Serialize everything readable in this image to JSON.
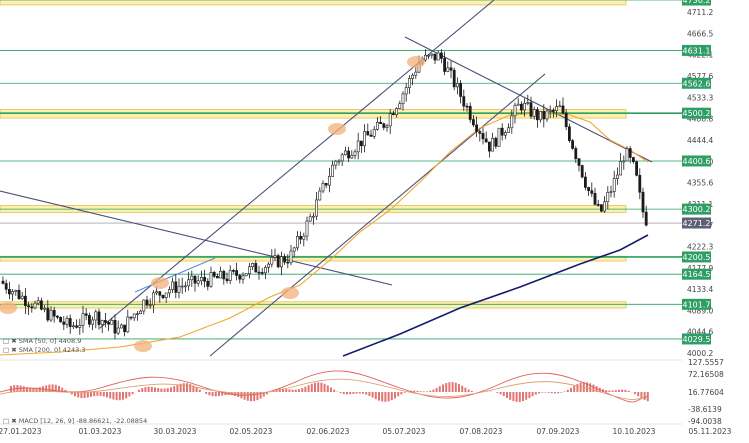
{
  "chart_data": {
    "type": "candlestick",
    "instrument_note": "",
    "x_dates": [
      "27.01.2023",
      "01.03.2023",
      "30.03.2023",
      "02.05.2023",
      "02.06.2023",
      "05.07.2023",
      "07.08.2023",
      "07.09.2023",
      "10.10.2023",
      "05.11.2023"
    ],
    "y_ticks": [
      4711.2,
      4666.5,
      4622.1,
      4577.6,
      4533.3,
      4488.8,
      4444.4,
      4400.0,
      4355.6,
      4311.1,
      4266.7,
      4222.3,
      4177.9,
      4133.4,
      4089.0,
      4044.6,
      4000.2
    ],
    "ylim": [
      4000.2,
      4750
    ],
    "price_tags": [
      {
        "value": "4736.2",
        "y": 4736.2
      },
      {
        "value": "4631.1",
        "y": 4631.1
      },
      {
        "value": "4562.6",
        "y": 4562.6
      },
      {
        "value": "4500.2",
        "y": 4500.2
      },
      {
        "value": "4400.6",
        "y": 4400.6
      },
      {
        "value": "4300.2",
        "y": 4300.2
      },
      {
        "value": "4200.5",
        "y": 4200.5
      },
      {
        "value": "4164.5",
        "y": 4164.5
      },
      {
        "value": "4101.7",
        "y": 4101.7
      },
      {
        "value": "4029.5",
        "y": 4029.5
      }
    ],
    "current_price": "4271.2",
    "zones": [
      [
        4726,
        4746
      ],
      [
        4490,
        4508
      ],
      [
        4293,
        4308
      ],
      [
        4192,
        4202
      ],
      [
        4094,
        4107
      ]
    ],
    "legend": {
      "sma50": "SMA [50, 0] 4408.9",
      "sma200": "SMA [200, 0] 4243.3",
      "macd": "MACD [12, 26, 9] -88.86621, -22.08854"
    },
    "macd_ticks": [
      "127.5557",
      "72.16508",
      "16.77604",
      "-38.6139",
      "-94.0038"
    ],
    "colors": {
      "candle": "#1a1a1a",
      "sma50": "#f0a630",
      "sma200": "#141c6e",
      "level": "#2aa063",
      "zone": "#fdf0b0",
      "trend": "#4a4f7a"
    }
  }
}
